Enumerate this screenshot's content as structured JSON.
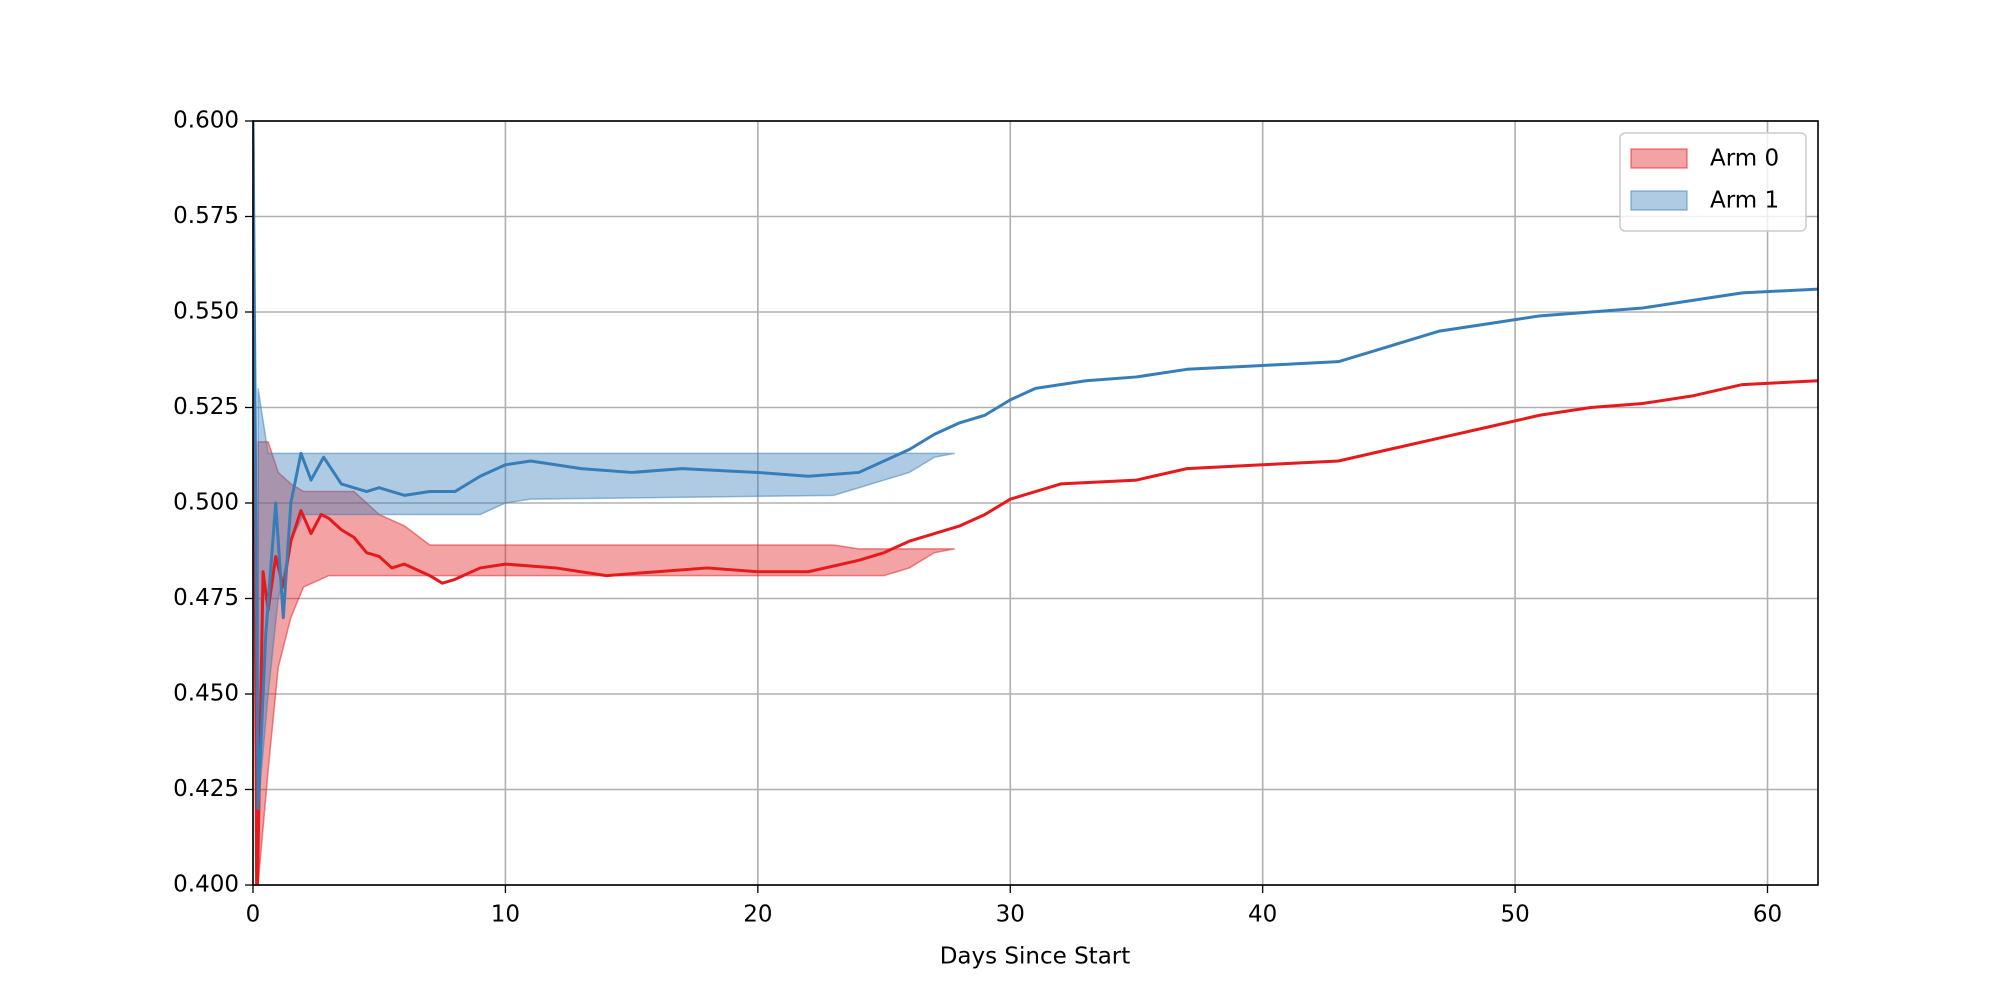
{
  "chart_data": {
    "type": "line",
    "x_label": "Days Since Start",
    "xlim": [
      0,
      62
    ],
    "ylim": [
      0.4,
      0.6
    ],
    "xticks": [
      0,
      10,
      20,
      30,
      40,
      50,
      60
    ],
    "yticks": [
      {
        "value": 0.4,
        "label": "0.400"
      },
      0.425,
      {
        "value": 0.45,
        "label": "0.450"
      },
      0.475,
      {
        "value": 0.5,
        "label": "0.500"
      },
      0.525,
      {
        "value": 0.55,
        "label": "0.550"
      },
      0.575,
      {
        "value": 0.6,
        "label": "0.600"
      }
    ],
    "grid": true,
    "legend": "upper right",
    "series": [
      {
        "name": "Arm 0",
        "color": "#e41a1c",
        "x": [
          0,
          0.15,
          0.4,
          0.6,
          0.9,
          1.2,
          1.5,
          1.9,
          2.3,
          2.7,
          3,
          3.5,
          4,
          4.5,
          5,
          5.5,
          6,
          7,
          7.5,
          8,
          9,
          10,
          12,
          14,
          16,
          18,
          20,
          22,
          24,
          25,
          26,
          27,
          28,
          29,
          30,
          31,
          32,
          35,
          37,
          40,
          43,
          45,
          47,
          49,
          51,
          53,
          55,
          57,
          59,
          62
        ],
        "values": [
          0.6,
          0.39,
          0.482,
          0.472,
          0.486,
          0.478,
          0.49,
          0.498,
          0.492,
          0.497,
          0.496,
          0.493,
          0.491,
          0.487,
          0.486,
          0.483,
          0.484,
          0.481,
          0.479,
          0.48,
          0.483,
          0.484,
          0.483,
          0.481,
          0.482,
          0.483,
          0.482,
          0.482,
          0.485,
          0.487,
          0.49,
          0.492,
          0.494,
          0.497,
          0.501,
          0.503,
          0.505,
          0.506,
          0.509,
          0.51,
          0.511,
          0.514,
          0.517,
          0.52,
          0.523,
          0.525,
          0.526,
          0.528,
          0.531,
          0.532
        ],
        "band": {
          "x": [
            0.2,
            0.6,
            1,
            1.5,
            2,
            3,
            4,
            5,
            6,
            7,
            9,
            10,
            11,
            23,
            24,
            25,
            26,
            27,
            27.8
          ],
          "lower": [
            0.4,
            0.43,
            0.457,
            0.47,
            0.478,
            0.481,
            0.481,
            0.481,
            0.481,
            0.481,
            0.481,
            0.481,
            0.481,
            0.481,
            0.481,
            0.481,
            0.483,
            0.487,
            0.488
          ],
          "upper": [
            0.516,
            0.516,
            0.508,
            0.505,
            0.503,
            0.503,
            0.503,
            0.497,
            0.494,
            0.489,
            0.489,
            0.489,
            0.489,
            0.489,
            0.488,
            0.488,
            0.488,
            0.488,
            0.488
          ]
        }
      },
      {
        "name": "Arm 1",
        "color": "#377eb8",
        "x": [
          0,
          0.2,
          0.5,
          0.9,
          1.2,
          1.5,
          1.9,
          2.3,
          2.8,
          3.5,
          4.5,
          5,
          6,
          7,
          8,
          9,
          10,
          11,
          13,
          15,
          17,
          20,
          22,
          24,
          25,
          26,
          27,
          28,
          29,
          30,
          31,
          33,
          35,
          37,
          40,
          43,
          45,
          47,
          49,
          51,
          53,
          55,
          57,
          59,
          62
        ],
        "values": [
          0.6,
          0.42,
          0.465,
          0.5,
          0.47,
          0.5,
          0.513,
          0.506,
          0.512,
          0.505,
          0.503,
          0.504,
          0.502,
          0.503,
          0.503,
          0.507,
          0.51,
          0.511,
          0.509,
          0.508,
          0.509,
          0.508,
          0.507,
          0.508,
          0.511,
          0.514,
          0.518,
          0.521,
          0.523,
          0.527,
          0.53,
          0.532,
          0.533,
          0.535,
          0.536,
          0.537,
          0.541,
          0.545,
          0.547,
          0.549,
          0.55,
          0.551,
          0.553,
          0.555,
          0.556
        ],
        "band": {
          "x": [
            0.2,
            0.6,
            1,
            1.5,
            2,
            3,
            4,
            5,
            6,
            7,
            9,
            10,
            11,
            23,
            24,
            25,
            26,
            27,
            27.8
          ],
          "lower": [
            0.42,
            0.45,
            0.475,
            0.49,
            0.497,
            0.497,
            0.497,
            0.497,
            0.497,
            0.497,
            0.497,
            0.5,
            0.501,
            0.502,
            0.504,
            0.506,
            0.508,
            0.512,
            0.513
          ],
          "upper": [
            0.53,
            0.513,
            0.513,
            0.513,
            0.513,
            0.513,
            0.513,
            0.513,
            0.513,
            0.513,
            0.513,
            0.513,
            0.513,
            0.513,
            0.513,
            0.513,
            0.513,
            0.513,
            0.513
          ]
        }
      }
    ]
  }
}
